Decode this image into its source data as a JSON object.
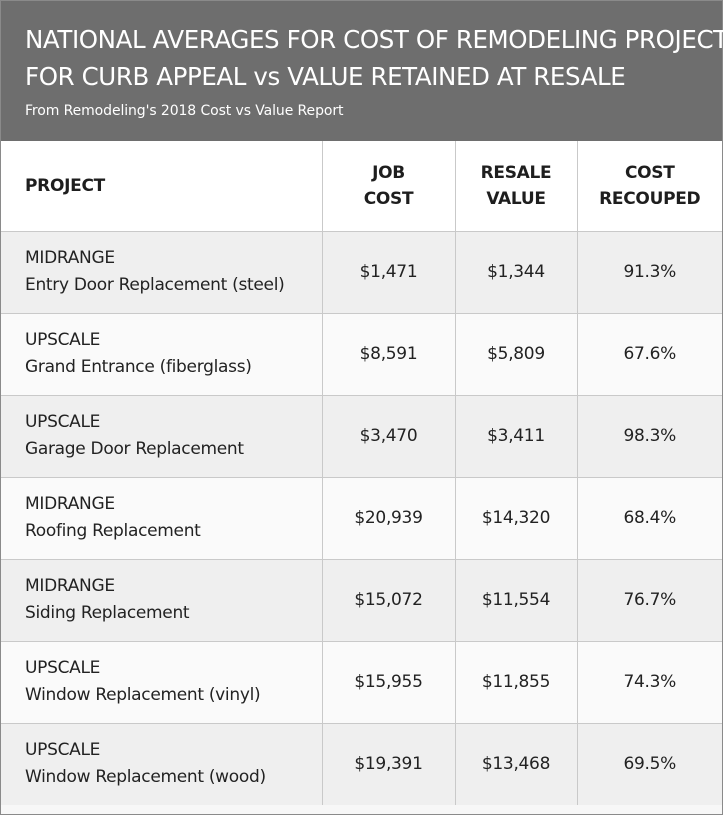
{
  "chart_data": {
    "type": "table",
    "title_lines": [
      "NATIONAL AVERAGES FOR COST OF REMODELING PROJECTS",
      "FOR CURB APPEAL vs VALUE RETAINED AT RESALE"
    ],
    "subtitle": "From Remodeling's 2018 Cost vs Value Report",
    "columns": {
      "project": "PROJECT",
      "job_cost": [
        "JOB",
        "COST"
      ],
      "resale_value": [
        "RESALE",
        "VALUE"
      ],
      "cost_recouped": [
        "COST",
        "RECOUPED"
      ]
    },
    "rows": [
      {
        "tier": "MIDRANGE",
        "project": "Entry Door Replacement (steel)",
        "job_cost": "$1,471",
        "resale_value": "$1,344",
        "cost_recouped": "91.3%"
      },
      {
        "tier": "UPSCALE",
        "project": "Grand Entrance (fiberglass)",
        "job_cost": "$8,591",
        "resale_value": "$5,809",
        "cost_recouped": "67.6%"
      },
      {
        "tier": "UPSCALE",
        "project": "Garage Door Replacement",
        "job_cost": "$3,470",
        "resale_value": "$3,411",
        "cost_recouped": "98.3%"
      },
      {
        "tier": "MIDRANGE",
        "project": "Roofing Replacement",
        "job_cost": "$20,939",
        "resale_value": "$14,320",
        "cost_recouped": "68.4%"
      },
      {
        "tier": "MIDRANGE",
        "project": "Siding Replacement",
        "job_cost": "$15,072",
        "resale_value": "$11,554",
        "cost_recouped": "76.7%"
      },
      {
        "tier": "UPSCALE",
        "project": "Window Replacement (vinyl)",
        "job_cost": "$15,955",
        "resale_value": "$11,855",
        "cost_recouped": "74.3%"
      },
      {
        "tier": "UPSCALE",
        "project": "Window Replacement (wood)",
        "job_cost": "$19,391",
        "resale_value": "$13,468",
        "cost_recouped": "69.5%"
      }
    ]
  },
  "colors": {
    "header_bg": "#6e6e6e",
    "header_text": "#ffffff",
    "row_odd": "#efefef",
    "row_even": "#fafafa",
    "grid": "#c9c9c9"
  }
}
